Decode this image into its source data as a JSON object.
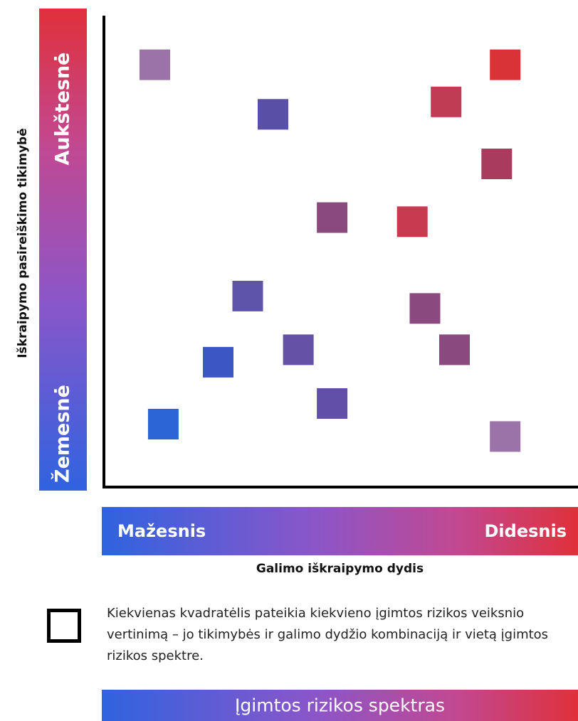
{
  "chart_data": {
    "type": "scatter",
    "ylabel": "Iškraipymo pasireiškimo tikimybė",
    "xlabel": "Galimo iškraipymo dydis",
    "ylabel_low": "Žemesnė",
    "ylabel_high": "Aukštesnė",
    "xlabel_low": "Mažesnis",
    "xlabel_high": "Didesnis",
    "xlim": [
      0,
      100
    ],
    "ylim": [
      0,
      100
    ],
    "marker": "square",
    "points": [
      {
        "x": 7,
        "y": 95,
        "color": "#9b73a8"
      },
      {
        "x": 90,
        "y": 95,
        "color": "#d93338"
      },
      {
        "x": 76,
        "y": 86,
        "color": "#c03c54"
      },
      {
        "x": 35,
        "y": 83,
        "color": "#5a4fa6"
      },
      {
        "x": 88,
        "y": 71,
        "color": "#a83b5e"
      },
      {
        "x": 49,
        "y": 58,
        "color": "#8a4a80"
      },
      {
        "x": 68,
        "y": 57,
        "color": "#c83a4e"
      },
      {
        "x": 29,
        "y": 39,
        "color": "#5f55a8"
      },
      {
        "x": 71,
        "y": 36,
        "color": "#8a4a80"
      },
      {
        "x": 41,
        "y": 26,
        "color": "#6552a6"
      },
      {
        "x": 78,
        "y": 26,
        "color": "#8a4a80"
      },
      {
        "x": 22,
        "y": 23,
        "color": "#3d57c2"
      },
      {
        "x": 49,
        "y": 13,
        "color": "#6150a6"
      },
      {
        "x": 9,
        "y": 8,
        "color": "#2c66d6"
      },
      {
        "x": 90,
        "y": 5,
        "color": "#9b73a8"
      }
    ]
  },
  "legend": {
    "text": "Kiekvienas kvadratėlis  pateikia kiekvieno įgimtos rizikos veiksnio vertinimą – jo tikimybės ir galimo dydžio kombinaciją ir vietą įgimtos rizikos spektre."
  },
  "spectrum": {
    "label": "Įgimtos rizikos spektras"
  },
  "colors": {
    "gradient_start": "#2f63e0",
    "gradient_mid": "#8c56c8",
    "gradient_end": "#e0303a"
  }
}
